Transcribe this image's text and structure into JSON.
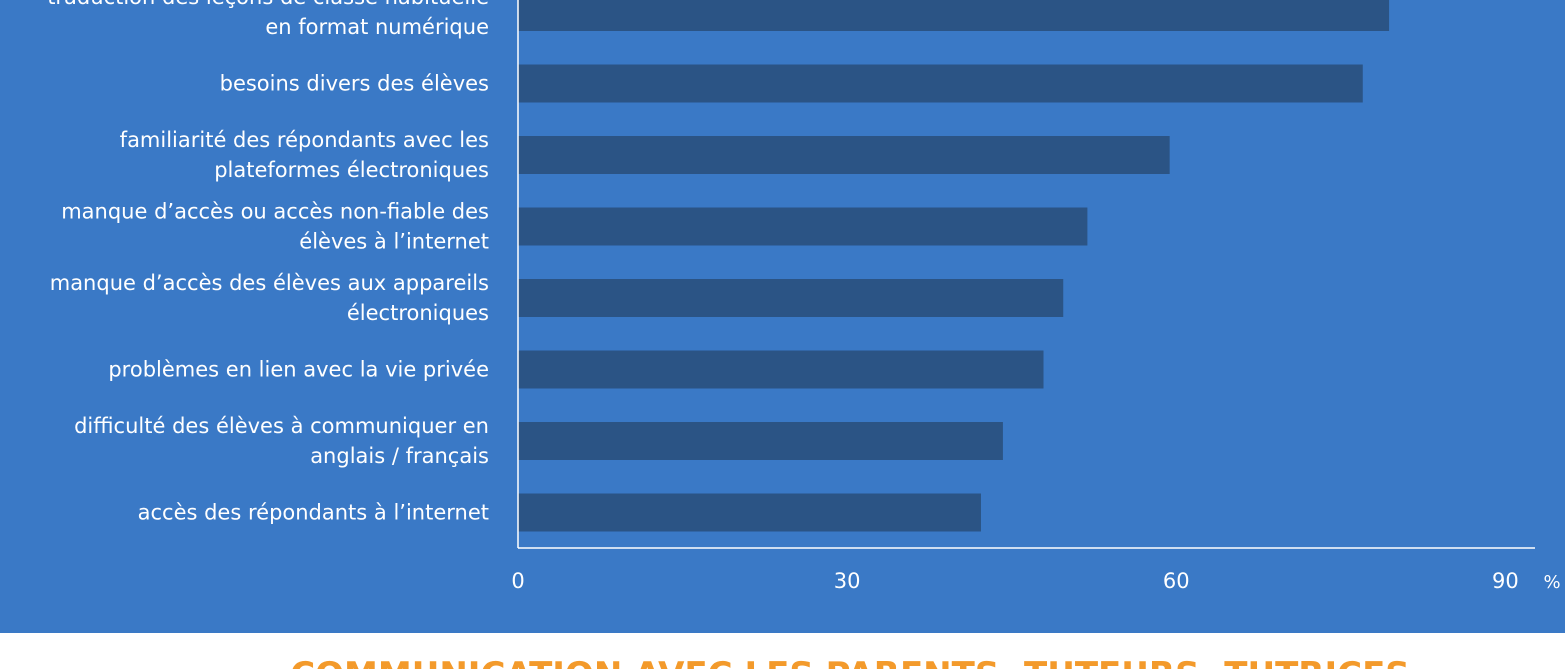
{
  "chart_data": {
    "type": "bar",
    "orientation": "horizontal",
    "categories": [
      [
        "traduction des leçons de classe habituelle",
        "en format numérique"
      ],
      [
        "besoins divers des élèves"
      ],
      [
        "familiarité des répondants avec les",
        "plateformes électroniques"
      ],
      [
        "manque d’accès ou accès non-fiable des",
        "élèves à l’internet"
      ],
      [
        "manque d’accès des élèves aux appareils",
        "électroniques"
      ],
      [
        "problèmes en lien avec la vie privée"
      ],
      [
        "difficulté des élèves à communiquer en",
        "anglais / français"
      ],
      [
        "accès des répondants à l’internet"
      ]
    ],
    "values": [
      79.4,
      77,
      59.4,
      51.9,
      49.7,
      47.9,
      44.2,
      42.2
    ],
    "color": "#2b5485",
    "xlim": [
      0,
      92.7
    ],
    "xticks": [
      0,
      30,
      60,
      90
    ],
    "x_unit": "%",
    "next_heading": "COMMUNICATION AVEC LES PARENTS, TUTEURS, TUTRICES"
  }
}
